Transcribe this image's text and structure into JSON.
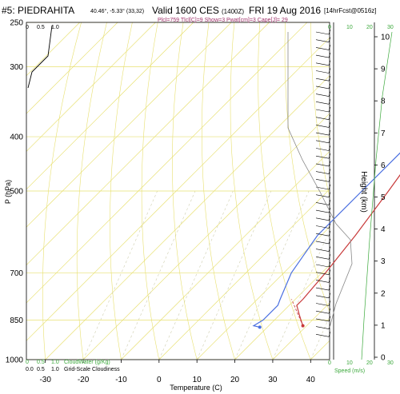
{
  "header": {
    "station": "#5: PIEDRAHITA",
    "coords": "40.46°, -5.33° (33,32)",
    "valid": "Valid 1600 CES",
    "zulu": "(1400Z)",
    "date": "FRI 19 Aug 2016",
    "forecast": "[14hrFcst@0516z]",
    "indices": "Plcl=759 Tlcl[C]=9 Show=3 Pwat[cm]=3 Cape[J]= 29"
  },
  "axes": {
    "xlabel": "Temperature (C)",
    "ylabel": "P (hPa)",
    "height_label": "Height (km)",
    "speed_label": "Speed (m/s)",
    "cloudwater_label": "CloudWater (g/Kg)",
    "cloudiness_label": "Grid-Scale Cloudiness"
  },
  "scales": {
    "top_left": [
      "0",
      "0.5",
      "1.0"
    ],
    "bottom_left_1": [
      "0",
      "0.5",
      "1.0"
    ],
    "bottom_left_2": [
      "0.0",
      "0.5",
      "1.0"
    ],
    "speed_top": [
      "0",
      "10",
      "20",
      "30"
    ],
    "speed_bottom": [
      "0",
      "10",
      "20",
      "30"
    ]
  },
  "colors": {
    "temperature": "#c83a3a",
    "dewpoint": "#4a6fe0",
    "grid": "#e8e070",
    "speed": "#3aa83a",
    "gray": "#888888"
  },
  "chart_data": {
    "type": "line",
    "title": "#5: PIEDRAHITA",
    "xlabel": "Temperature (C)",
    "ylabel": "P (hPa)",
    "xlim": [
      -35,
      45
    ],
    "ylim": [
      1000,
      250
    ],
    "y_scale": "log",
    "x_ticks": [
      "-30",
      "-20",
      "-10",
      "0",
      "10",
      "20",
      "30",
      "40"
    ],
    "p_ticks": [
      "250",
      "300",
      "400",
      "500",
      "700",
      "850",
      "1000"
    ],
    "height_ticks": [
      "0",
      "1",
      "2",
      "3",
      "4",
      "5",
      "6",
      "7",
      "8",
      "9",
      "10"
    ],
    "series": [
      {
        "name": "temperature",
        "points": [
          [
            4,
            250
          ],
          [
            6,
            280
          ],
          [
            8,
            320
          ],
          [
            12,
            400
          ],
          [
            16,
            500
          ],
          [
            19,
            600
          ],
          [
            21,
            700
          ],
          [
            22,
            780
          ],
          [
            22,
            800
          ],
          [
            25,
            830
          ],
          [
            27,
            850
          ],
          [
            29,
            870
          ]
        ]
      },
      {
        "name": "dewpoint",
        "points": [
          [
            0,
            250
          ],
          [
            5,
            300
          ],
          [
            8,
            350
          ],
          [
            9,
            400
          ],
          [
            9,
            500
          ],
          [
            9,
            600
          ],
          [
            12,
            700
          ],
          [
            16,
            780
          ],
          [
            17,
            800
          ],
          [
            17,
            850
          ],
          [
            16,
            870
          ],
          [
            18,
            875
          ]
        ]
      }
    ]
  }
}
